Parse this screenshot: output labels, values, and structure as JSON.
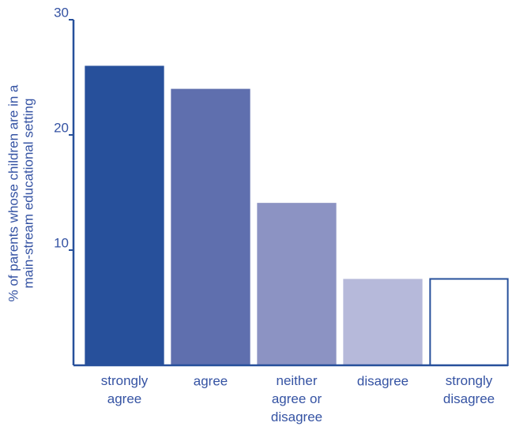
{
  "chart_data": {
    "type": "bar",
    "ylabel": "% of parents whose children are in a\nmain-stream educational setting",
    "categories": [
      "strongly\nagree",
      "agree",
      "neither\nagree or\ndisagree",
      "disagree",
      "strongly\ndisagree"
    ],
    "values": [
      26,
      24,
      14.1,
      7.5,
      7.5
    ],
    "colors": [
      "#27509b",
      "#5f6fae",
      "#8c93c3",
      "#b6b9da",
      "#ffffff"
    ],
    "edgecolor": "#27509b",
    "ylim": [
      0,
      30
    ],
    "yticks": [
      10,
      20,
      30
    ]
  }
}
